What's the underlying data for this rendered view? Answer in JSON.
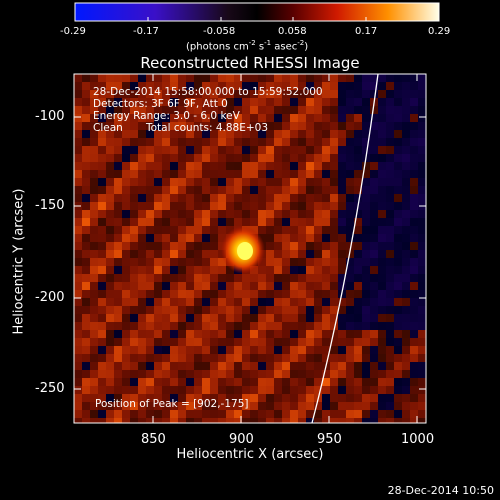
{
  "colorbar": {
    "ticks": [
      "-0.29",
      "-0.17",
      "-0.058",
      "0.058",
      "0.17",
      "0.29"
    ],
    "units_main": "(photons cm",
    "units_exp1": "-2",
    "units_mid": " s",
    "units_exp2": "-1",
    "units_mid2": " asec",
    "units_exp3": "-2",
    "units_end": ")"
  },
  "title": "Reconstructed RHESSI Image",
  "info": {
    "line1": "28-Dec-2014 15:58:00.000 to 15:59:52.000",
    "line2": "Detectors: 3F 6F 9F, Att 0",
    "line3": "Energy Range: 3.0 - 6.0 keV",
    "line4_a": "Clean",
    "line4_b": "Total counts: 4.88E+03"
  },
  "peak_label": "Position of Peak = [902,-175]",
  "axes": {
    "xlabel": "Heliocentric X (arcsec)",
    "ylabel": "Heliocentric Y (arcsec)",
    "xticks": [
      "850",
      "900",
      "950",
      "1000"
    ],
    "yticks": [
      "-100",
      "-150",
      "-200",
      "-250"
    ]
  },
  "timestamp": "28-Dec-2014 10:50",
  "colors": {
    "background": "#000000",
    "text": "#ffffff"
  }
}
